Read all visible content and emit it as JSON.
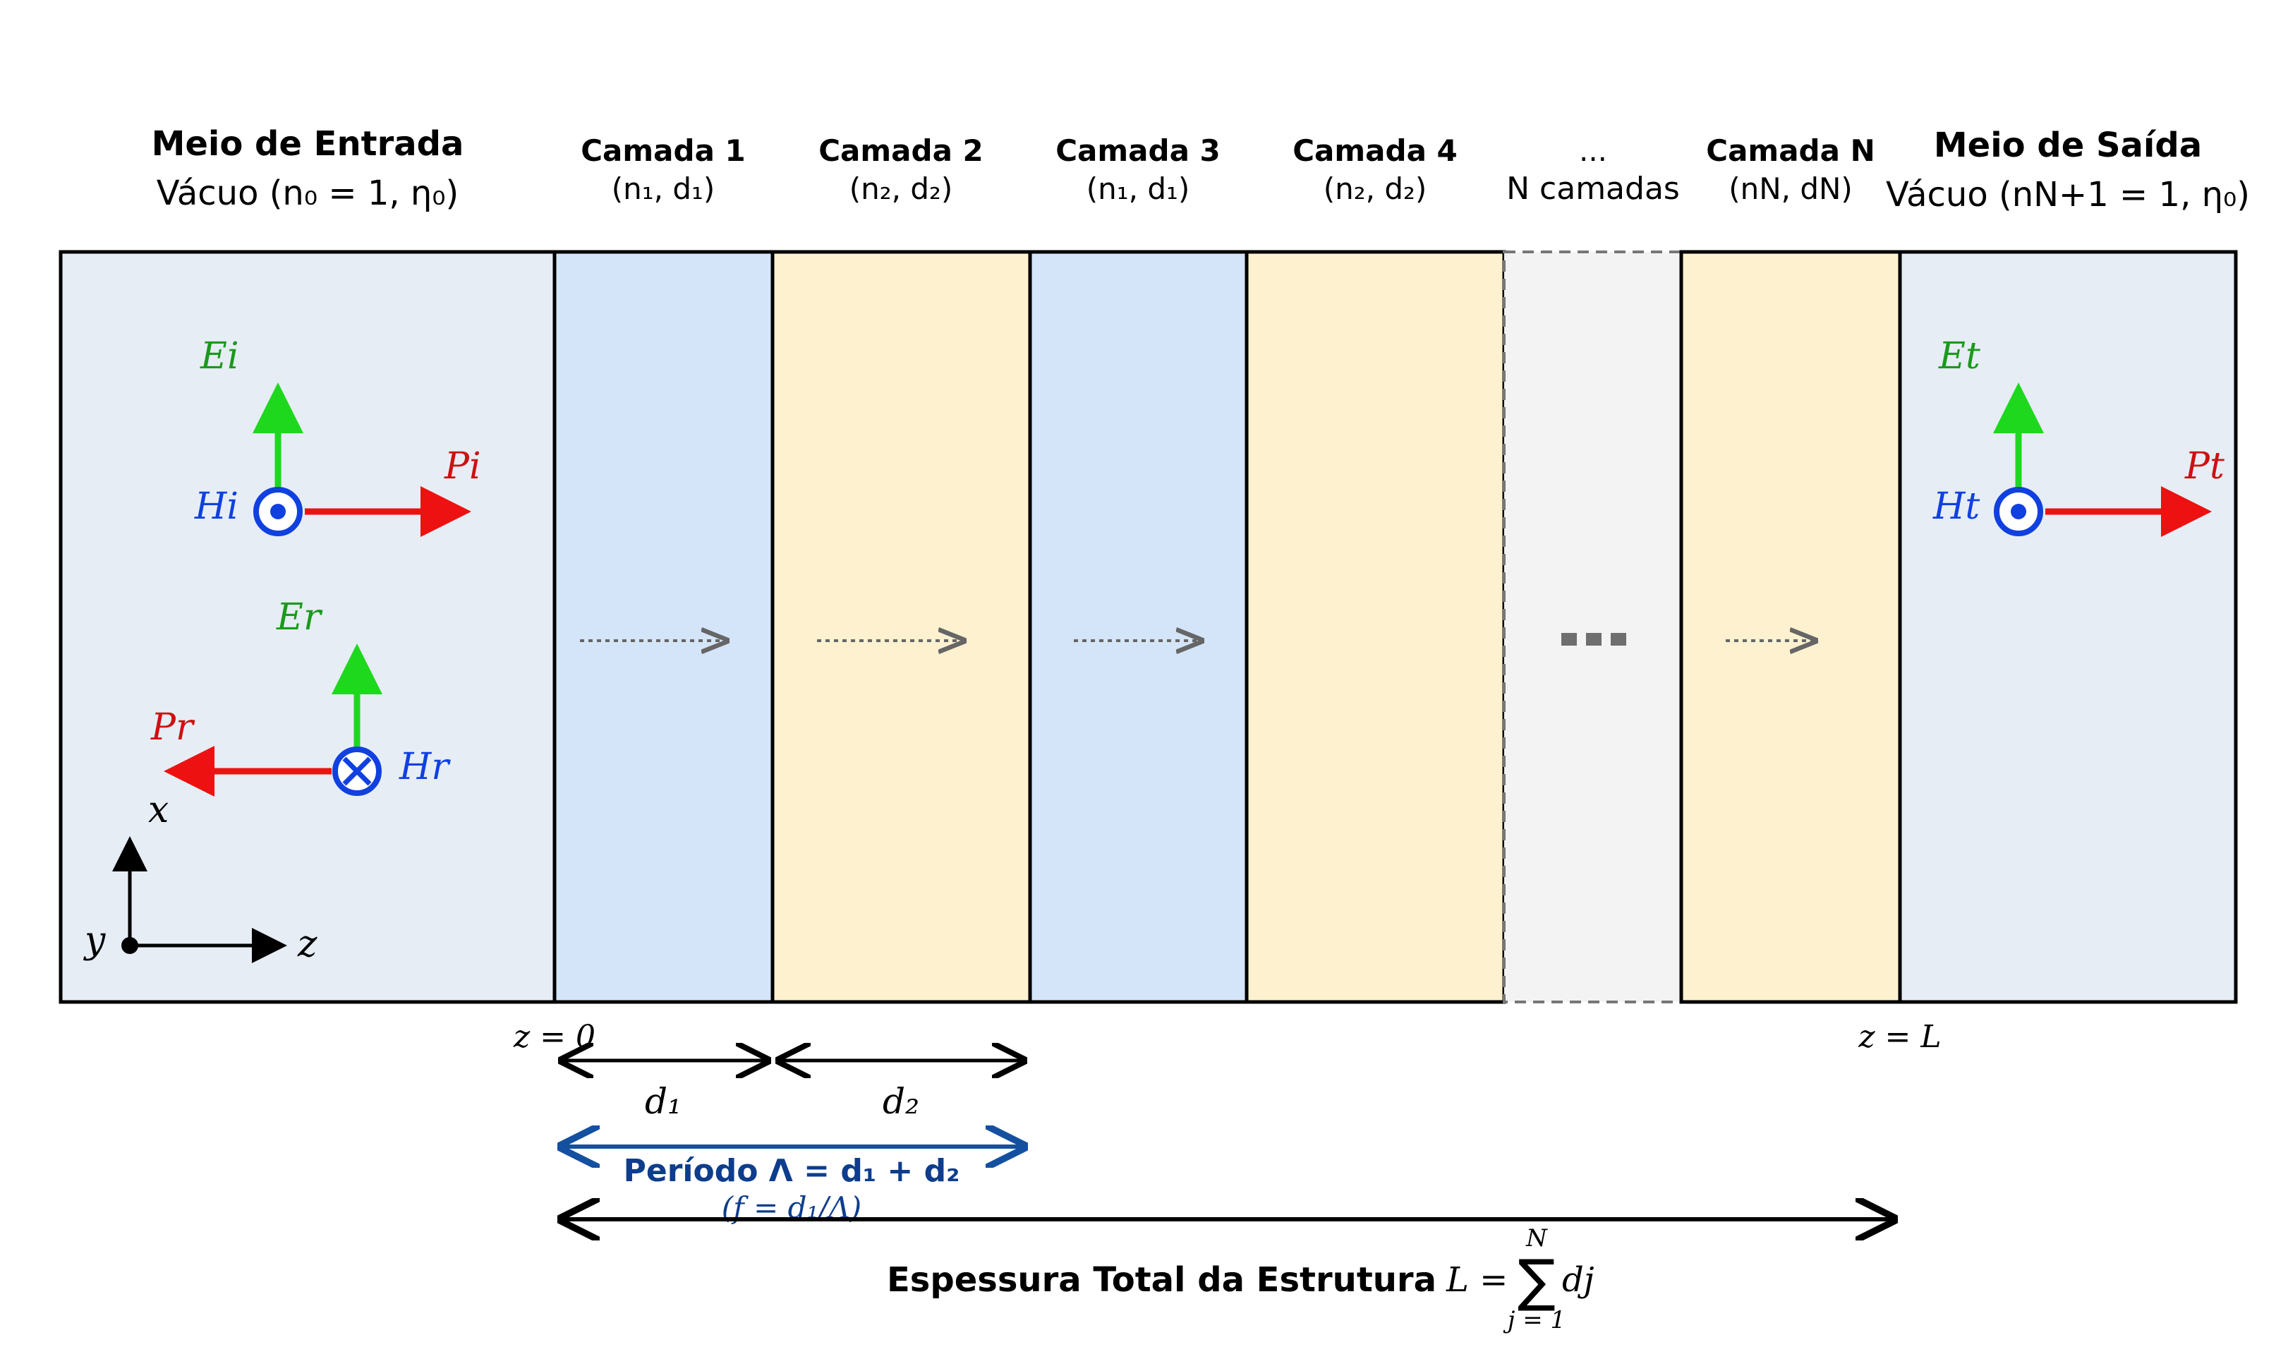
{
  "colors": {
    "outer_medium": "#e6edf5",
    "layer_n1": "#d4e5f9",
    "layer_n2": "#fdf1cf",
    "layer_gap": "#f3f3f3",
    "electric": "#1ed81e",
    "electric_label": "#1a9a1a",
    "poynting": "#ee1111",
    "poynting_label": "#cc1111",
    "magnetic": "#1040e0",
    "period": "#1450a0",
    "period_label": "#0d3d8c"
  },
  "input_medium": {
    "title": "Meio de Entrada",
    "subtitle": "Vácuo (n₀ = 1,  η₀)"
  },
  "output_medium": {
    "title": "Meio de Saída",
    "subtitle": "Vácuo (nN+1 = 1,  η₀)"
  },
  "layers": [
    {
      "title": "Camada 1",
      "params": "(n₁, d₁)"
    },
    {
      "title": "Camada 2",
      "params": "(n₂, d₂)"
    },
    {
      "title": "Camada 3",
      "params": "(n₁, d₁)"
    },
    {
      "title": "Camada 4",
      "params": "(n₂, d₂)"
    },
    {
      "title": "...",
      "params": "N camadas"
    },
    {
      "title": "Camada N",
      "params": "(nN, dN)"
    }
  ],
  "gap_dots": "···",
  "fields": {
    "Ei": "Ei",
    "Pi": "Pi",
    "Hi": "Hi",
    "Er": "Er",
    "Pr": "Pr",
    "Hr": "Hr",
    "Et": "Et",
    "Pt": "Pt",
    "Ht": "Ht"
  },
  "axes": {
    "x": "x",
    "y": "y",
    "z": "z"
  },
  "positions": {
    "z0": "z = 0",
    "zL": "z = L"
  },
  "dims": {
    "d1": "d₁",
    "d2": "d₂"
  },
  "period": {
    "label": "Período Λ = d₁ + d₂",
    "fill_factor": "(f = d₁/Λ)"
  },
  "total": {
    "label": "Espessura Total da Estrutura",
    "formula_lhs": "L =",
    "sum_upper": "N",
    "sum_lower": "j = 1",
    "formula_term": "dj"
  }
}
